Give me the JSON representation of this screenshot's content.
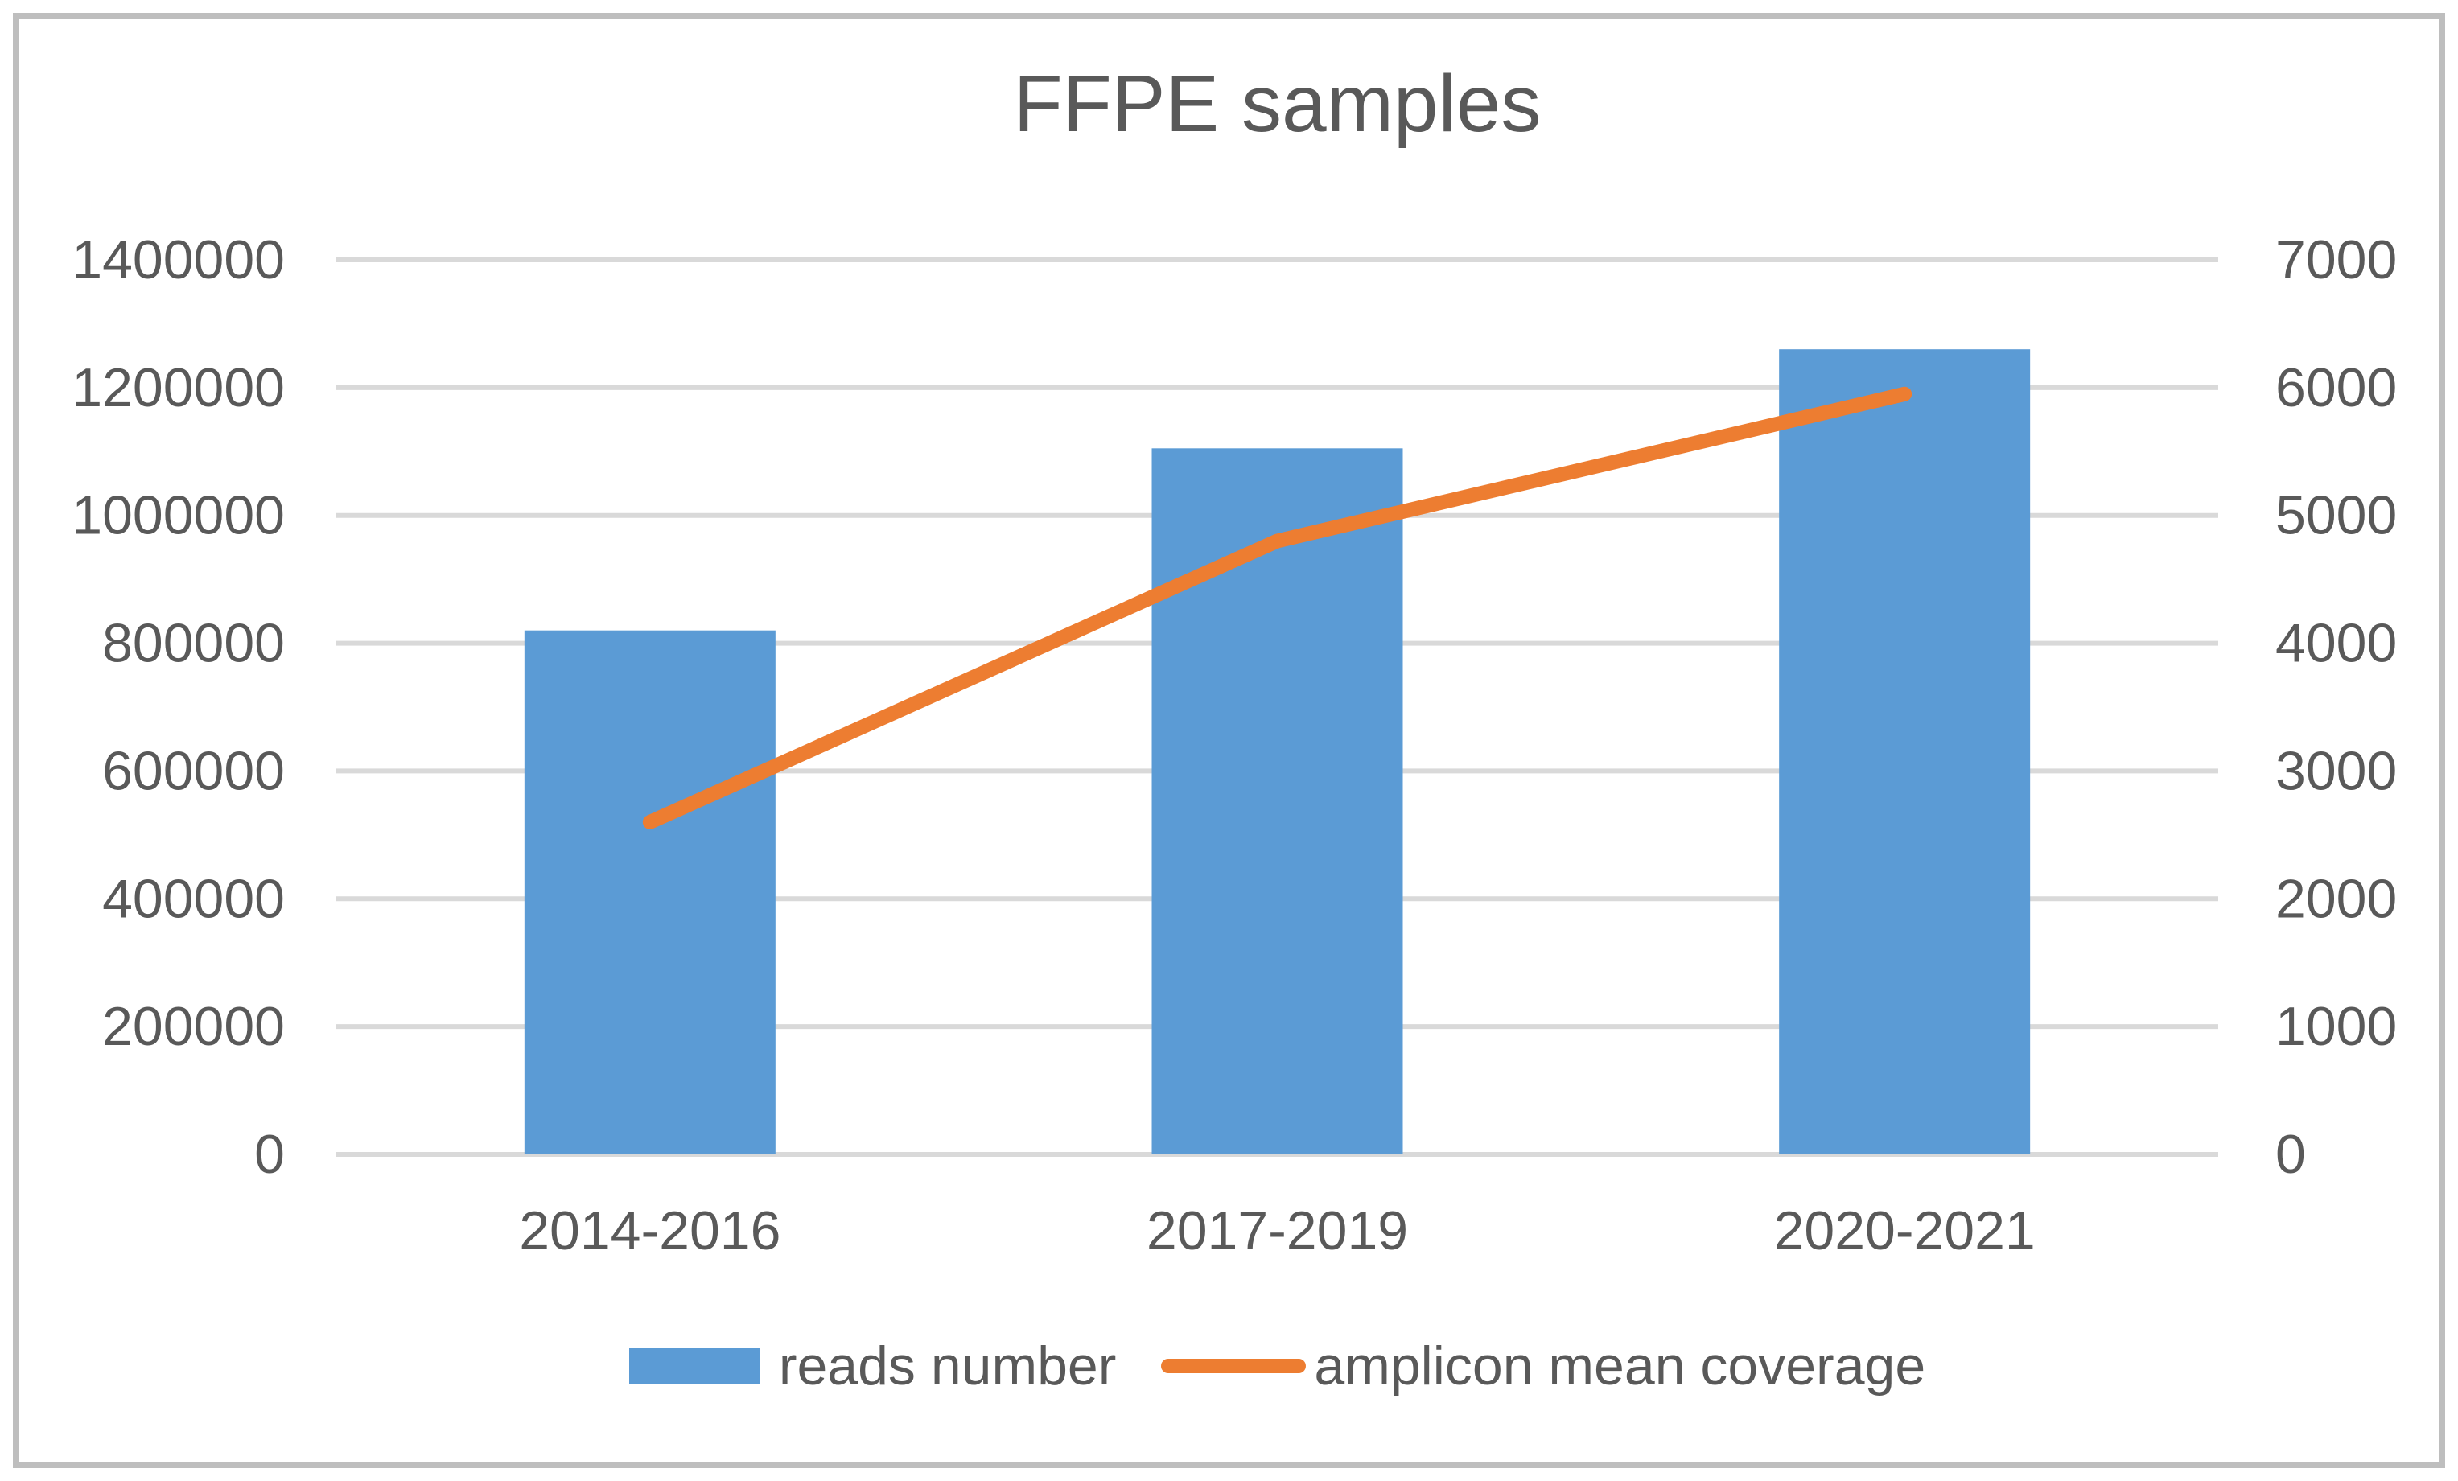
{
  "chart_data": {
    "type": "combo",
    "title": "FFPE samples",
    "categories": [
      "2014-2016",
      "2017-2019",
      "2020-2021"
    ],
    "series": [
      {
        "name": "reads number",
        "type": "bar",
        "axis": "left",
        "color": "#5B9BD5",
        "values": [
          820000,
          1105000,
          1260000
        ]
      },
      {
        "name": "amplicon mean coverage",
        "type": "line",
        "axis": "right",
        "color": "#ED7D31",
        "values": [
          2600,
          4800,
          5950
        ]
      }
    ],
    "left_axis": {
      "min": 0,
      "max": 1400000,
      "step": 200000,
      "tick_labels": [
        "0",
        "200000",
        "400000",
        "600000",
        "800000",
        "1000000",
        "1200000",
        "1400000"
      ]
    },
    "right_axis": {
      "min": 0,
      "max": 7000,
      "step": 1000,
      "tick_labels": [
        "0",
        "1000",
        "2000",
        "3000",
        "4000",
        "5000",
        "6000",
        "7000"
      ]
    },
    "grid": true,
    "legend_position": "bottom",
    "text_color": "#595959",
    "grid_color": "#D9D9D9",
    "border_color": "#BEBEBE"
  }
}
